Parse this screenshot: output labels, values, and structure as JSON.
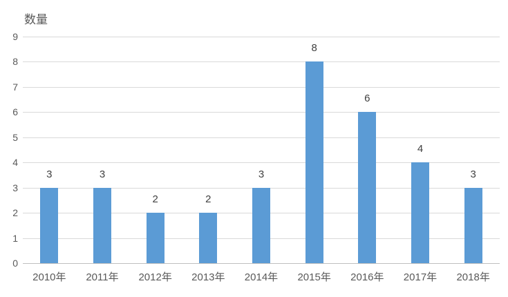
{
  "chart_data": {
    "type": "bar",
    "title": "数量",
    "categories": [
      "2010年",
      "2011年",
      "2012年",
      "2013年",
      "2014年",
      "2015年",
      "2016年",
      "2017年",
      "2018年"
    ],
    "values": [
      3,
      3,
      2,
      2,
      3,
      8,
      6,
      4,
      3
    ],
    "xlabel": "",
    "ylabel": "",
    "ylim": [
      0,
      9
    ],
    "yticks": [
      0,
      1,
      2,
      3,
      4,
      5,
      6,
      7,
      8,
      9
    ],
    "grid": true,
    "legend": "none",
    "data_labels": [
      3,
      3,
      2,
      2,
      3,
      8,
      6,
      4,
      3
    ]
  },
  "colors": {
    "bar": "#5B9BD5",
    "gridline": "#D9D9D9",
    "axis_line": "#BFBFBF",
    "title_text": "#595959",
    "tick_text": "#595959",
    "data_label_text": "#404040",
    "background": "#FFFFFF"
  }
}
